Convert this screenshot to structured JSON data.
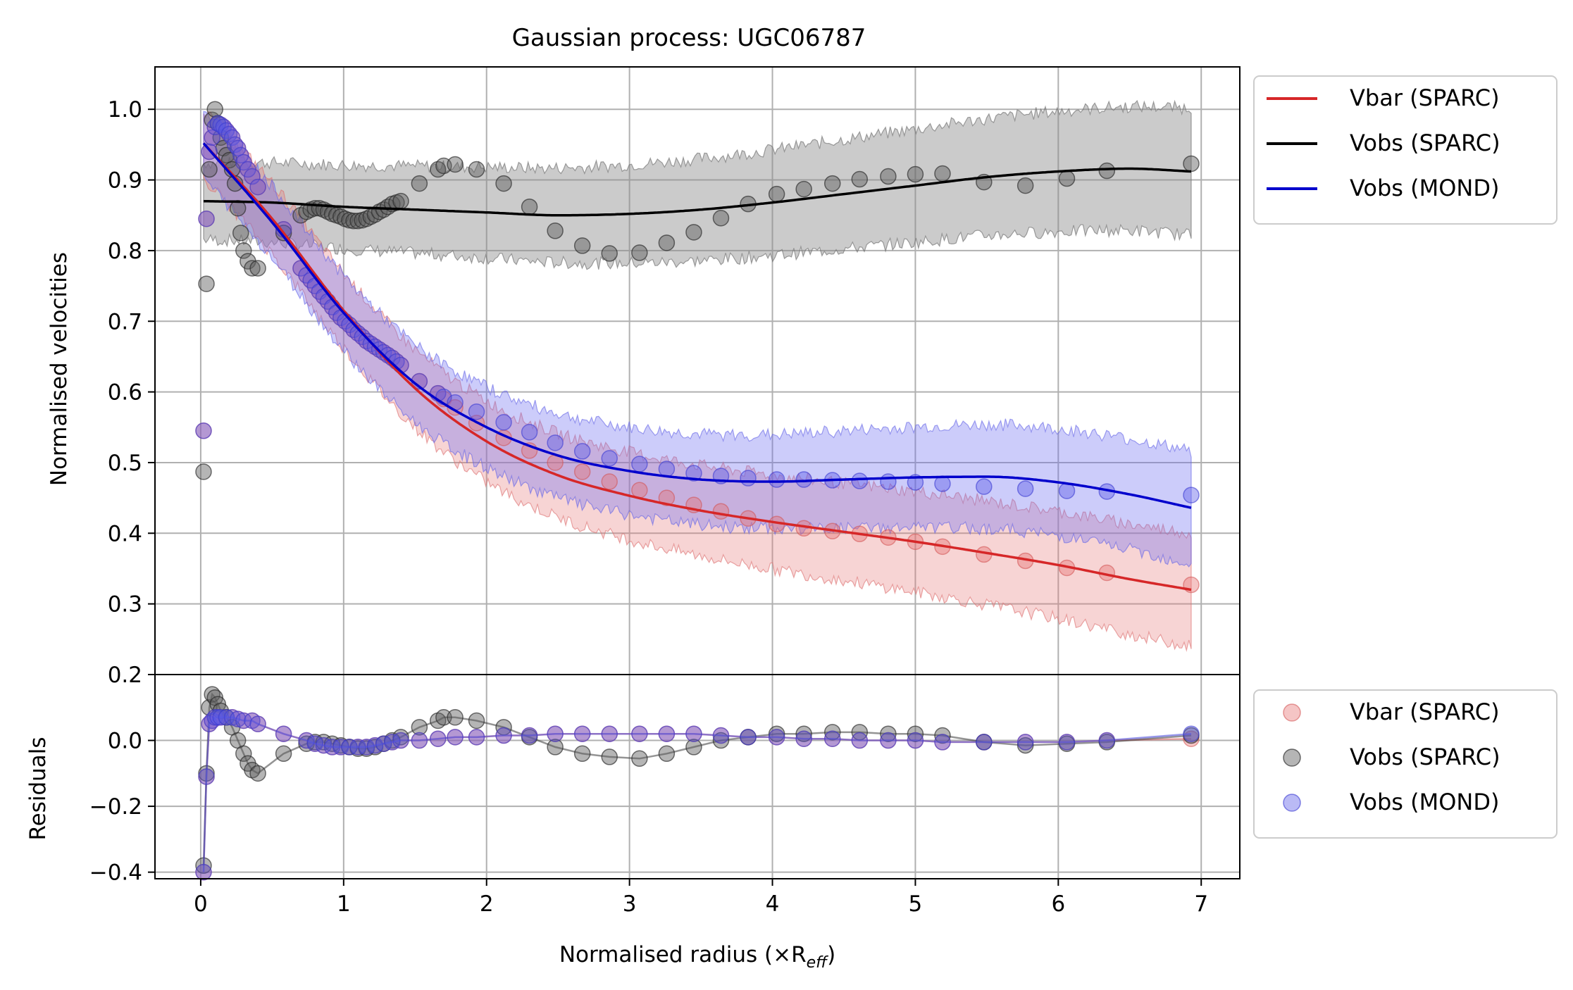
{
  "chart_data": {
    "type": "scatter",
    "title": "Gaussian process: UGC06787",
    "xlabel": "Normalised radius (×R",
    "xlabel_sub": "eff",
    "xlabel_close": ")",
    "top_panel": {
      "ylabel": "Normalised velocities",
      "xlim": [
        -0.32,
        7.27
      ],
      "ylim": [
        0.2,
        1.06
      ],
      "yticks": [
        0.2,
        0.3,
        0.4,
        0.5,
        0.6,
        0.7,
        0.8,
        0.9,
        1.0
      ],
      "ytick_labels": [
        "0.2",
        "0.3",
        "0.4",
        "0.5",
        "0.6",
        "0.7",
        "0.8",
        "0.9",
        "1.0"
      ],
      "grid": true,
      "legend_position": "outside upper-right",
      "legend": [
        {
          "label": "Vbar (SPARC)",
          "color": "#d62728"
        },
        {
          "label": "Vobs (SPARC)",
          "color": "#000000"
        },
        {
          "label": "Vobs (MOND)",
          "color": "#0000cc"
        }
      ],
      "fit_lines": [
        {
          "name": "Vbar (SPARC)",
          "color": "#d62728",
          "x": [
            0.02,
            0.5,
            1.0,
            1.5,
            2.0,
            2.5,
            3.0,
            3.5,
            4.0,
            4.5,
            5.0,
            5.5,
            6.0,
            6.5,
            6.93
          ],
          "y": [
            0.952,
            0.845,
            0.715,
            0.605,
            0.53,
            0.482,
            0.453,
            0.432,
            0.416,
            0.402,
            0.388,
            0.372,
            0.355,
            0.335,
            0.32
          ],
          "band": 0.08
        },
        {
          "name": "Vobs (SPARC)",
          "color": "#000000",
          "x": [
            0.02,
            0.5,
            1.0,
            1.5,
            2.0,
            2.5,
            3.0,
            3.5,
            4.0,
            4.5,
            5.0,
            5.5,
            6.0,
            6.5,
            6.93
          ],
          "y": [
            0.87,
            0.868,
            0.862,
            0.858,
            0.854,
            0.85,
            0.852,
            0.858,
            0.868,
            0.88,
            0.892,
            0.904,
            0.912,
            0.916,
            0.912
          ],
          "band": 0.09
        },
        {
          "name": "Vobs (MOND)",
          "color": "#0000cc",
          "x": [
            0.02,
            0.5,
            1.0,
            1.5,
            2.0,
            2.5,
            3.0,
            3.5,
            4.0,
            4.5,
            5.0,
            5.5,
            6.0,
            6.5,
            6.93
          ],
          "y": [
            0.952,
            0.84,
            0.712,
            0.612,
            0.55,
            0.51,
            0.488,
            0.476,
            0.473,
            0.476,
            0.479,
            0.48,
            0.472,
            0.455,
            0.436
          ],
          "band": 0.08
        }
      ],
      "points": [
        {
          "name": "Vbar (SPARC)",
          "color": "#e8a0a0",
          "x": [
            0.02,
            0.04,
            0.06,
            0.08,
            0.1,
            0.12,
            0.14,
            0.16,
            0.18,
            0.2,
            0.22,
            0.24,
            0.26,
            0.28,
            0.3,
            0.33,
            0.36,
            0.4,
            0.58,
            0.7,
            0.74,
            0.77,
            0.8,
            0.83,
            0.86,
            0.89,
            0.92,
            0.95,
            0.98,
            1.01,
            1.04,
            1.07,
            1.1,
            1.13,
            1.16,
            1.19,
            1.22,
            1.25,
            1.28,
            1.31,
            1.34,
            1.37,
            1.4,
            1.53,
            1.66,
            1.7,
            1.78,
            1.93,
            2.12,
            2.3,
            2.48,
            2.67,
            2.86,
            3.07,
            3.26,
            3.45,
            3.64,
            3.83,
            4.03,
            4.22,
            4.42,
            4.61,
            4.81,
            5.0,
            5.19,
            5.48,
            5.77,
            6.06,
            6.34,
            6.93
          ],
          "y": [
            0.545,
            0.845,
            0.94,
            0.96,
            0.975,
            0.98,
            0.978,
            0.975,
            0.97,
            0.965,
            0.96,
            0.95,
            0.945,
            0.935,
            0.925,
            0.915,
            0.905,
            0.89,
            0.83,
            0.775,
            0.765,
            0.758,
            0.75,
            0.742,
            0.735,
            0.728,
            0.72,
            0.712,
            0.705,
            0.7,
            0.695,
            0.688,
            0.683,
            0.678,
            0.672,
            0.668,
            0.664,
            0.66,
            0.656,
            0.652,
            0.648,
            0.643,
            0.638,
            0.615,
            0.598,
            0.59,
            0.578,
            0.556,
            0.535,
            0.517,
            0.5,
            0.487,
            0.473,
            0.461,
            0.45,
            0.44,
            0.431,
            0.421,
            0.413,
            0.407,
            0.403,
            0.399,
            0.394,
            0.388,
            0.381,
            0.37,
            0.361,
            0.351,
            0.344,
            0.327
          ]
        },
        {
          "name": "Vobs (SPARC)",
          "color": "#808080",
          "x": [
            0.02,
            0.04,
            0.06,
            0.08,
            0.1,
            0.12,
            0.14,
            0.16,
            0.18,
            0.2,
            0.22,
            0.24,
            0.26,
            0.28,
            0.3,
            0.33,
            0.36,
            0.4,
            0.58,
            0.7,
            0.74,
            0.77,
            0.8,
            0.83,
            0.86,
            0.89,
            0.92,
            0.95,
            0.98,
            1.01,
            1.04,
            1.07,
            1.1,
            1.13,
            1.16,
            1.19,
            1.22,
            1.25,
            1.28,
            1.31,
            1.34,
            1.37,
            1.4,
            1.53,
            1.66,
            1.7,
            1.78,
            1.93,
            2.12,
            2.3,
            2.48,
            2.67,
            2.86,
            3.07,
            3.26,
            3.45,
            3.64,
            3.83,
            4.03,
            4.22,
            4.42,
            4.61,
            4.81,
            5.0,
            5.19,
            5.48,
            5.77,
            6.06,
            6.34,
            6.93
          ],
          "y": [
            0.487,
            0.753,
            0.915,
            0.985,
            1.0,
            0.98,
            0.96,
            0.945,
            0.935,
            0.928,
            0.915,
            0.895,
            0.86,
            0.825,
            0.8,
            0.785,
            0.775,
            0.775,
            0.825,
            0.85,
            0.855,
            0.858,
            0.86,
            0.86,
            0.858,
            0.855,
            0.852,
            0.85,
            0.848,
            0.845,
            0.843,
            0.842,
            0.842,
            0.843,
            0.845,
            0.848,
            0.851,
            0.855,
            0.858,
            0.862,
            0.866,
            0.868,
            0.87,
            0.895,
            0.915,
            0.92,
            0.922,
            0.915,
            0.895,
            0.862,
            0.828,
            0.807,
            0.796,
            0.797,
            0.811,
            0.826,
            0.846,
            0.866,
            0.88,
            0.887,
            0.895,
            0.901,
            0.905,
            0.908,
            0.909,
            0.897,
            0.892,
            0.902,
            0.913,
            0.923
          ]
        },
        {
          "name": "Vobs (MOND)",
          "color": "#7070e8",
          "x": [
            0.02,
            0.04,
            0.06,
            0.08,
            0.1,
            0.12,
            0.14,
            0.16,
            0.18,
            0.2,
            0.22,
            0.24,
            0.26,
            0.28,
            0.3,
            0.33,
            0.36,
            0.4,
            0.58,
            0.7,
            0.74,
            0.77,
            0.8,
            0.83,
            0.86,
            0.89,
            0.92,
            0.95,
            0.98,
            1.01,
            1.04,
            1.07,
            1.1,
            1.13,
            1.16,
            1.19,
            1.22,
            1.25,
            1.28,
            1.31,
            1.34,
            1.37,
            1.4,
            1.53,
            1.66,
            1.7,
            1.78,
            1.93,
            2.12,
            2.3,
            2.48,
            2.67,
            2.86,
            3.07,
            3.26,
            3.45,
            3.64,
            3.83,
            4.03,
            4.22,
            4.42,
            4.61,
            4.81,
            5.0,
            5.19,
            5.48,
            5.77,
            6.06,
            6.34,
            6.93
          ],
          "y": [
            0.545,
            0.845,
            0.94,
            0.96,
            0.975,
            0.98,
            0.978,
            0.975,
            0.97,
            0.965,
            0.96,
            0.95,
            0.945,
            0.935,
            0.925,
            0.915,
            0.905,
            0.89,
            0.83,
            0.775,
            0.765,
            0.758,
            0.75,
            0.742,
            0.735,
            0.728,
            0.72,
            0.712,
            0.705,
            0.7,
            0.695,
            0.688,
            0.683,
            0.678,
            0.672,
            0.668,
            0.664,
            0.66,
            0.656,
            0.652,
            0.648,
            0.643,
            0.638,
            0.615,
            0.598,
            0.593,
            0.585,
            0.572,
            0.557,
            0.543,
            0.528,
            0.516,
            0.506,
            0.498,
            0.491,
            0.485,
            0.481,
            0.478,
            0.476,
            0.476,
            0.475,
            0.474,
            0.473,
            0.472,
            0.47,
            0.466,
            0.463,
            0.46,
            0.459,
            0.454
          ]
        }
      ]
    },
    "bottom_panel": {
      "ylabel": "Residuals",
      "ylim": [
        -0.42,
        0.2
      ],
      "yticks": [
        -0.4,
        -0.2,
        0.0
      ],
      "ytick_labels": [
        "−0.4",
        "−0.2",
        "0.0"
      ],
      "xticks": [
        0,
        1,
        2,
        3,
        4,
        5,
        6,
        7
      ],
      "xtick_labels": [
        "0",
        "1",
        "2",
        "3",
        "4",
        "5",
        "6",
        "7"
      ],
      "grid": true,
      "legend_position": "outside lower-right",
      "legend": [
        {
          "label": "Vbar (SPARC)",
          "color": "#e8a0a0"
        },
        {
          "label": "Vobs (SPARC)",
          "color": "#808080"
        },
        {
          "label": "Vobs (MOND)",
          "color": "#7070e8"
        }
      ],
      "residuals": [
        {
          "name": "Vbar (SPARC)",
          "color": "#e8a0a0",
          "x": [
            0.02,
            0.04,
            0.06,
            0.08,
            0.1,
            0.12,
            0.14,
            0.18,
            0.22,
            0.26,
            0.3,
            0.36,
            0.4,
            0.58,
            0.74,
            0.8,
            0.86,
            0.92,
            0.98,
            1.04,
            1.1,
            1.16,
            1.22,
            1.28,
            1.34,
            1.4,
            1.53,
            1.66,
            1.78,
            1.93,
            2.12,
            2.3,
            2.48,
            2.67,
            2.86,
            3.07,
            3.26,
            3.45,
            3.64,
            3.83,
            4.03,
            4.22,
            4.42,
            4.61,
            4.81,
            5.0,
            5.19,
            5.48,
            5.77,
            6.06,
            6.34,
            6.93
          ],
          "y": [
            -0.4,
            -0.11,
            0.05,
            0.06,
            0.07,
            0.07,
            0.07,
            0.07,
            0.07,
            0.065,
            0.06,
            0.06,
            0.05,
            0.02,
            0.0,
            -0.01,
            -0.015,
            -0.02,
            -0.02,
            -0.02,
            -0.02,
            -0.02,
            -0.015,
            -0.01,
            -0.005,
            0.0,
            0.0,
            0.005,
            0.01,
            0.01,
            0.015,
            0.015,
            0.02,
            0.02,
            0.02,
            0.02,
            0.02,
            0.02,
            0.015,
            0.01,
            0.01,
            0.005,
            0.005,
            0.0,
            0.0,
            0.0,
            -0.005,
            -0.005,
            -0.005,
            -0.005,
            0.0,
            0.005
          ]
        },
        {
          "name": "Vobs (SPARC)",
          "color": "#808080",
          "x": [
            0.02,
            0.04,
            0.06,
            0.08,
            0.1,
            0.12,
            0.14,
            0.18,
            0.22,
            0.26,
            0.3,
            0.33,
            0.36,
            0.4,
            0.58,
            0.74,
            0.8,
            0.86,
            0.92,
            0.98,
            1.04,
            1.1,
            1.16,
            1.22,
            1.28,
            1.34,
            1.4,
            1.53,
            1.66,
            1.7,
            1.78,
            1.93,
            2.12,
            2.3,
            2.48,
            2.67,
            2.86,
            3.07,
            3.26,
            3.45,
            3.64,
            3.83,
            4.03,
            4.22,
            4.42,
            4.61,
            4.81,
            5.0,
            5.19,
            5.48,
            5.77,
            6.06,
            6.34,
            6.93
          ],
          "y": [
            -0.38,
            -0.1,
            0.1,
            0.14,
            0.13,
            0.11,
            0.09,
            0.07,
            0.04,
            0.0,
            -0.04,
            -0.07,
            -0.09,
            -0.1,
            -0.04,
            -0.01,
            -0.005,
            -0.005,
            -0.01,
            -0.015,
            -0.02,
            -0.025,
            -0.025,
            -0.02,
            -0.01,
            0.0,
            0.01,
            0.04,
            0.06,
            0.07,
            0.07,
            0.06,
            0.04,
            0.01,
            -0.02,
            -0.04,
            -0.05,
            -0.055,
            -0.04,
            -0.02,
            0.0,
            0.01,
            0.02,
            0.02,
            0.025,
            0.025,
            0.02,
            0.02,
            0.015,
            -0.005,
            -0.015,
            -0.01,
            -0.005,
            0.015
          ]
        },
        {
          "name": "Vobs (MOND)",
          "color": "#7070e8",
          "x": [
            0.02,
            0.04,
            0.06,
            0.08,
            0.1,
            0.12,
            0.14,
            0.18,
            0.22,
            0.26,
            0.3,
            0.36,
            0.4,
            0.58,
            0.74,
            0.8,
            0.86,
            0.92,
            0.98,
            1.04,
            1.1,
            1.16,
            1.22,
            1.28,
            1.34,
            1.4,
            1.53,
            1.66,
            1.78,
            1.93,
            2.12,
            2.3,
            2.48,
            2.67,
            2.86,
            3.07,
            3.26,
            3.45,
            3.64,
            3.83,
            4.03,
            4.22,
            4.42,
            4.61,
            4.81,
            5.0,
            5.19,
            5.48,
            5.77,
            6.06,
            6.34,
            6.93
          ],
          "y": [
            -0.4,
            -0.11,
            0.05,
            0.06,
            0.07,
            0.07,
            0.07,
            0.07,
            0.07,
            0.065,
            0.06,
            0.06,
            0.05,
            0.02,
            0.0,
            -0.01,
            -0.015,
            -0.02,
            -0.02,
            -0.02,
            -0.02,
            -0.02,
            -0.015,
            -0.01,
            -0.005,
            0.0,
            0.0,
            0.005,
            0.01,
            0.01,
            0.015,
            0.015,
            0.02,
            0.02,
            0.02,
            0.02,
            0.02,
            0.02,
            0.015,
            0.01,
            0.01,
            0.005,
            0.005,
            0.0,
            0.0,
            0.0,
            -0.005,
            -0.005,
            -0.005,
            -0.005,
            0.0,
            0.02
          ]
        }
      ]
    }
  }
}
